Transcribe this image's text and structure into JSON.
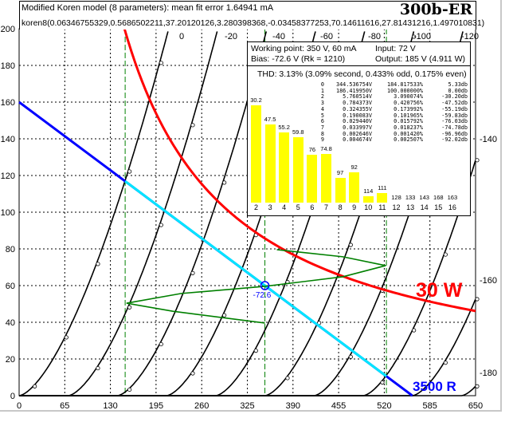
{
  "header": {
    "line1": "Modified Koren model (8 parameters): mean fit error 1.64941 mA",
    "line2": "koren8(0.06346755329,0.5686502211,37.20120126,3.280398368,-0.03458377253,70.14611616,27.81431216,1.497010831)",
    "tube": "300b-ER"
  },
  "inset": {
    "working_point": "Working point: 350 V, 60 mA",
    "input": "Input: 72 V",
    "bias": "Bias: -72.6 V (Rk = 1210)",
    "output": "Output: 185 V (4.911 W)",
    "thd": "THD: 3.13% (3.09% second, 0.433% odd, 0.175% even)",
    "table": [
      [
        "0",
        "344.536754V",
        "184.817533%",
        "5.33db"
      ],
      [
        "1",
        "186.419950V",
        "100.000000%",
        "0.00db"
      ],
      [
        "2",
        "5.760514V",
        "3.090074%",
        "-30.20db"
      ],
      [
        "3",
        "0.784373V",
        "0.420756%",
        "-47.52db"
      ],
      [
        "4",
        "0.324355V",
        "0.173992%",
        "-55.19db"
      ],
      [
        "5",
        "0.190083V",
        "0.101965%",
        "-59.83db"
      ],
      [
        "6",
        "0.029440V",
        "0.015792%",
        "-76.03db"
      ],
      [
        "7",
        "0.033997V",
        "0.018237%",
        "-74.78db"
      ],
      [
        "8",
        "0.002646V",
        "0.001420%",
        "-96.96db"
      ],
      [
        "9",
        "0.004674V",
        "0.002507%",
        "-92.02db"
      ]
    ],
    "harmonics": [
      {
        "n": "2",
        "db": "30.2"
      },
      {
        "n": "3",
        "db": "47.5"
      },
      {
        "n": "4",
        "db": "55.2"
      },
      {
        "n": "5",
        "db": "59.8"
      },
      {
        "n": "6",
        "db": "76"
      },
      {
        "n": "7",
        "db": "74.8"
      },
      {
        "n": "8",
        "db": "97"
      },
      {
        "n": "9",
        "db": "92"
      },
      {
        "n": "10",
        "db": "114"
      },
      {
        "n": "11",
        "db": "111"
      },
      {
        "n": "12",
        "db": "128"
      },
      {
        "n": "13",
        "db": "133"
      },
      {
        "n": "14",
        "db": "143"
      },
      {
        "n": "15",
        "db": "168"
      },
      {
        "n": "16",
        "db": "163"
      }
    ]
  },
  "chart_data": {
    "type": "line",
    "title": "300b-ER",
    "xlim": [
      0,
      650
    ],
    "ylim": [
      0,
      200
    ],
    "xticks": [
      "0",
      "65",
      "130",
      "195",
      "260",
      "325",
      "390",
      "455",
      "520",
      "585",
      "650"
    ],
    "yticks": [
      "0",
      "20",
      "40",
      "60",
      "80",
      "100",
      "120",
      "140",
      "160",
      "180",
      "200"
    ],
    "grid": true,
    "grid_voltages": [
      0,
      -20,
      -40,
      -60,
      -80,
      -100,
      -120,
      -140,
      -160,
      -180
    ],
    "grid_labels_top": [
      "0",
      "-20",
      "-40",
      "-60",
      "-80",
      "-100",
      "-120"
    ],
    "grid_labels_right": [
      "-140",
      "-160",
      "-180"
    ],
    "load_line": {
      "label": "3500 R",
      "ohms": 3500,
      "points": [
        [
          0,
          160
        ],
        [
          560,
          0
        ]
      ],
      "swing": [
        [
          151,
          116.9
        ],
        [
          523,
          10.6
        ]
      ],
      "color": "#0000ff",
      "swing_color": "#00e5ff"
    },
    "power_curve": {
      "label": "30 W",
      "watts": 30,
      "color": "#ff0000"
    },
    "operating_point": {
      "v": 350,
      "i": 60,
      "label": "-72.6"
    },
    "swing_limits_v": [
      151,
      350,
      523
    ],
    "dynamic_curve": [
      [
        367,
        79.6
      ],
      [
        461,
        75.7
      ],
      [
        522,
        70.9
      ],
      [
        461,
        64.8
      ],
      [
        350,
        59.6
      ],
      [
        231,
        55.7
      ],
      [
        153,
        50.4
      ],
      [
        219,
        46
      ],
      [
        350,
        39.6
      ]
    ]
  }
}
